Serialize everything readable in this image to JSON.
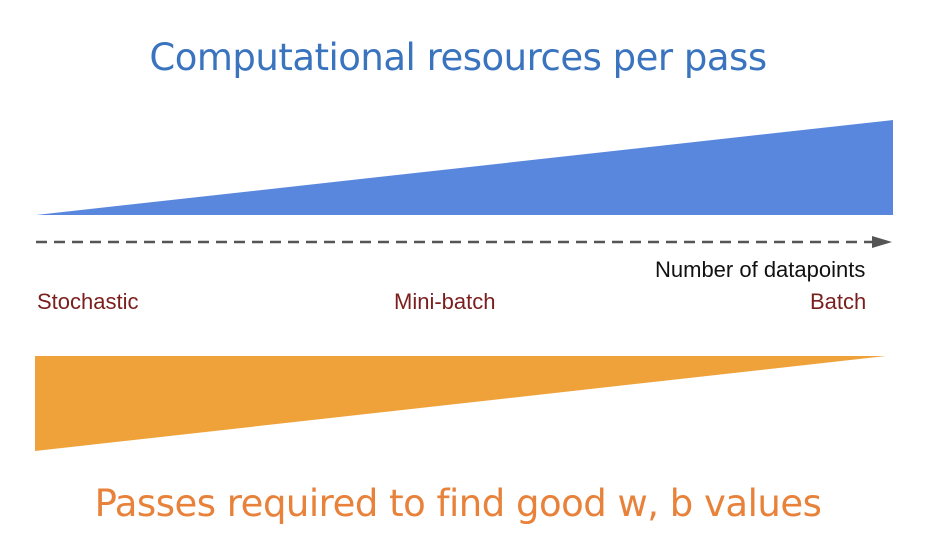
{
  "top_title": "Computational resources per pass",
  "bottom_title": "Passes required to find good w, b values",
  "axis": {
    "label": "Number of datapoints"
  },
  "categories": {
    "stochastic": "Stochastic",
    "minibatch": "Mini-batch",
    "batch": "Batch"
  },
  "colors": {
    "resources_wedge": "#5a87de",
    "passes_wedge": "#f0a23a",
    "top_title": "#3a74bf",
    "bottom_title": "#e8823a",
    "category_text": "#7a1e1e",
    "axis_arrow": "#555555"
  }
}
